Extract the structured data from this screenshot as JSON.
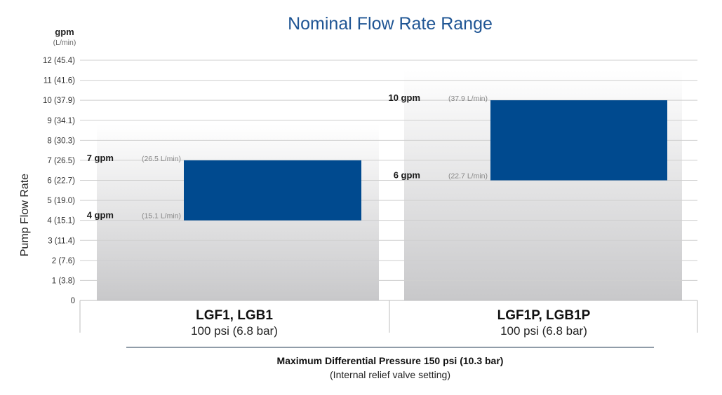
{
  "chart_data": {
    "type": "bar",
    "subtype": "floating-range",
    "title": "Nominal Flow Rate Range",
    "ylabel": "Pump Flow Rate",
    "y_unit_primary": "gpm",
    "y_unit_secondary": "(L/min)",
    "ylim": [
      0,
      12
    ],
    "yticks": [
      {
        "value": 0,
        "label": "0"
      },
      {
        "value": 1,
        "label": "1 (3.8)"
      },
      {
        "value": 2,
        "label": "2 (7.6)"
      },
      {
        "value": 3,
        "label": "3 (11.4)"
      },
      {
        "value": 4,
        "label": "4 (15.1)"
      },
      {
        "value": 5,
        "label": "5 (19.0)"
      },
      {
        "value": 6,
        "label": "6 (22.7)"
      },
      {
        "value": 7,
        "label": "7 (26.5)"
      },
      {
        "value": 8,
        "label": "8 (30.3)"
      },
      {
        "value": 9,
        "label": "9 (34.1)"
      },
      {
        "value": 10,
        "label": "10 (37.9)"
      },
      {
        "value": 11,
        "label": "11 (41.6)"
      },
      {
        "value": 12,
        "label": "12 (45.4)"
      }
    ],
    "grid": true,
    "bar_color": "#004a8f",
    "categories": [
      {
        "name": "LGF1, LGB1",
        "subtitle": "100 psi (6.8 bar)",
        "low": 4,
        "high": 7,
        "low_label": "4 gpm",
        "low_label_metric": "(15.1 L/min)",
        "high_label": "7 gpm",
        "high_label_metric": "(26.5 L/min)",
        "panel_top_value": 8.8
      },
      {
        "name": "LGF1P, LGB1P",
        "subtitle": "100 psi (6.8 bar)",
        "low": 6,
        "high": 10,
        "low_label": "6 gpm",
        "low_label_metric": "(22.7 L/min)",
        "high_label": "10 gpm",
        "high_label_metric": "(37.9 L/min)",
        "panel_top_value": 11.5
      }
    ],
    "footnote_main": "Maximum Differential Pressure 150 psi (10.3 bar)",
    "footnote_sub": "(Internal relief valve setting)"
  }
}
